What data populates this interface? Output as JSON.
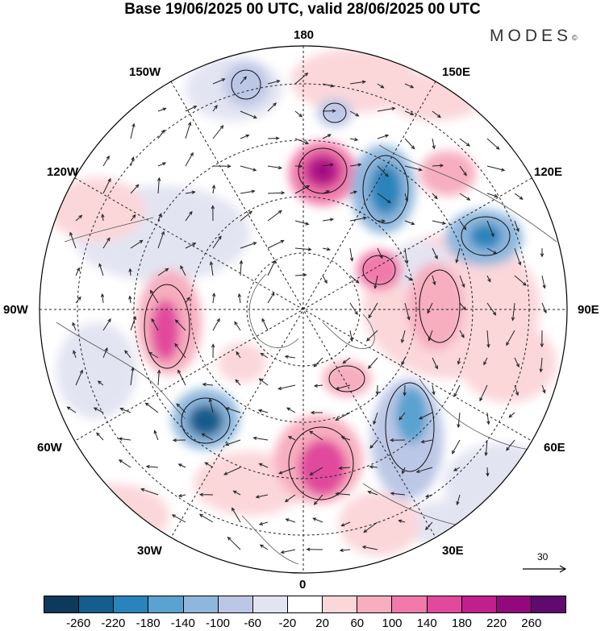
{
  "title": "Base 19/06/2025 00 UTC, valid 28/06/2025 00 UTC",
  "brand": "MODES",
  "brand_mark": "©",
  "longitude_labels": {
    "n180": "180",
    "w150": "150W",
    "e150": "150E",
    "w120": "120W",
    "e120": "120E",
    "w90": "90W",
    "e90": "90E",
    "w60": "60W",
    "e60": "60E",
    "w30": "30W",
    "e30": "30E",
    "s0": "0"
  },
  "vector_scale_label": "30",
  "colorbar": {
    "colors": [
      "#0d3a5c",
      "#155d8c",
      "#2a84bb",
      "#5aa2d0",
      "#8fb7dd",
      "#bcc7e6",
      "#e3e4f2",
      "#ffffff",
      "#fbd7da",
      "#f7aebf",
      "#f17aaa",
      "#e14a9c",
      "#c11f8d",
      "#93097c",
      "#5e0a6e"
    ],
    "labels": [
      "-260",
      "-220",
      "-180",
      "-140",
      "-100",
      "-60",
      "-20",
      "20",
      "60",
      "100",
      "140",
      "180",
      "220",
      "260"
    ]
  }
}
